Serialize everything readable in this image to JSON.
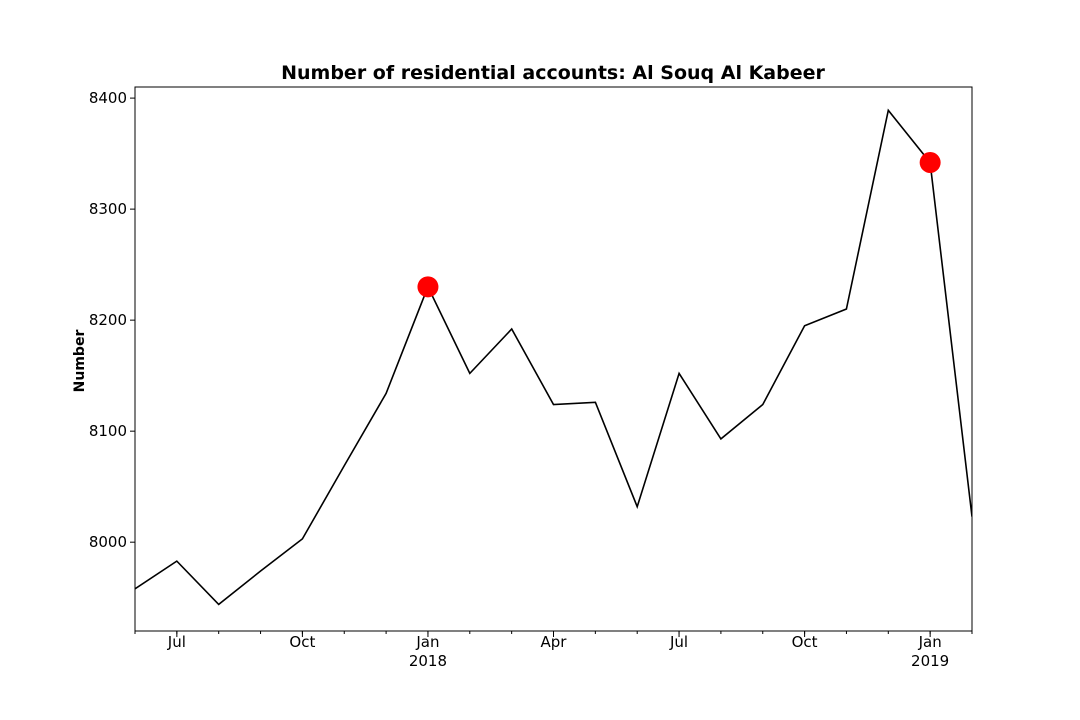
{
  "chart_data": {
    "type": "line",
    "title": "Number of residential accounts: Al Souq Al Kabeer",
    "xlabel": "",
    "ylabel": "Number",
    "ylim": [
      7920,
      8410
    ],
    "yticks": [
      8000,
      8100,
      8200,
      8300,
      8400
    ],
    "xlim": [
      "2017-06",
      "2019-02"
    ],
    "xticks": [
      {
        "month": "2017-07",
        "label": "Jul",
        "sublabel": ""
      },
      {
        "month": "2017-10",
        "label": "Oct",
        "sublabel": ""
      },
      {
        "month": "2018-01",
        "label": "Jan",
        "sublabel": "2018"
      },
      {
        "month": "2018-04",
        "label": "Apr",
        "sublabel": ""
      },
      {
        "month": "2018-07",
        "label": "Jul",
        "sublabel": ""
      },
      {
        "month": "2018-10",
        "label": "Oct",
        "sublabel": ""
      },
      {
        "month": "2019-01",
        "label": "Jan",
        "sublabel": "2019"
      }
    ],
    "grid": false,
    "line_color": "#000000",
    "marker_color": "#ff0000",
    "x": [
      "2017-06",
      "2017-07",
      "2017-08",
      "2017-09",
      "2017-10",
      "2017-11",
      "2017-12",
      "2018-01",
      "2018-02",
      "2018-03",
      "2018-04",
      "2018-05",
      "2018-06",
      "2018-07",
      "2018-08",
      "2018-09",
      "2018-10",
      "2018-11",
      "2018-12",
      "2019-01",
      "2019-02"
    ],
    "values": [
      7958,
      7983,
      7944,
      7974,
      8003,
      8069,
      8134,
      8230,
      8152,
      8192,
      8124,
      8126,
      8032,
      8152,
      8093,
      8124,
      8195,
      8210,
      8389,
      8342,
      8023
    ],
    "highlighted_points": [
      {
        "x": "2018-01",
        "y": 8230
      },
      {
        "x": "2019-01",
        "y": 8342
      }
    ]
  }
}
